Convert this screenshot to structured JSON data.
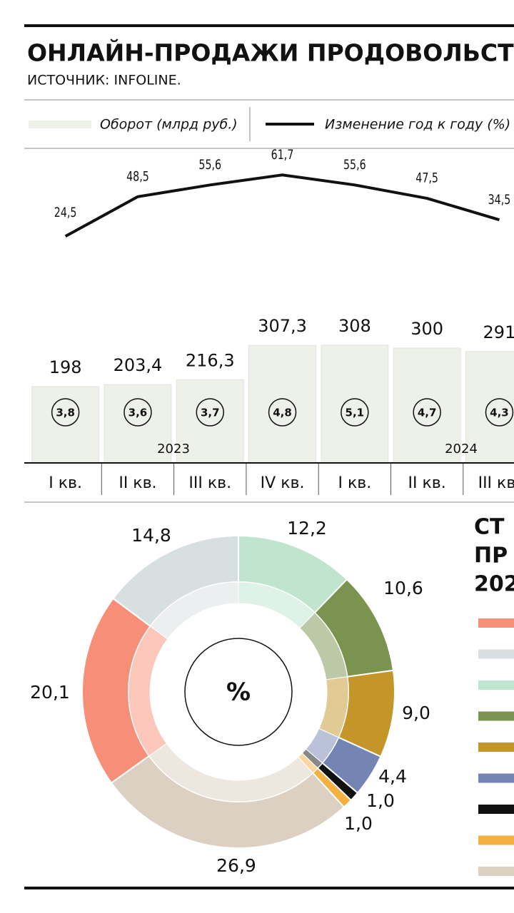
{
  "chart_data": [
    {
      "type": "bar-line",
      "title": "ОНЛАЙН-ПРОДАЖИ ПРОДОВОЛЬСТВЕ",
      "subtitle": "ИСТОЧНИК: INFOLINE.",
      "categories": [
        "I кв.",
        "II кв.",
        "III кв.",
        "IV кв.",
        "I кв.",
        "II кв.",
        "III кв."
      ],
      "years": [
        "2023",
        "2024"
      ],
      "series": [
        {
          "name": "Оборот (млрд руб.)",
          "type": "bar",
          "color": "#eef0ea",
          "values": [
            198,
            203.4,
            216.3,
            307.3,
            308,
            300,
            291
          ],
          "value_labels": [
            "198",
            "203,4",
            "216,3",
            "307,3",
            "308",
            "300",
            "291"
          ],
          "circle_values": [
            3.8,
            3.6,
            3.7,
            4.8,
            5.1,
            4.7,
            4.3
          ],
          "circle_labels": [
            "3,8",
            "3,6",
            "3,7",
            "4,8",
            "5,1",
            "4,7",
            "4,3"
          ]
        },
        {
          "name": "Изменение год к году (%)",
          "type": "line",
          "axis": "y2",
          "color": "#111111",
          "values": [
            24.5,
            48.5,
            55.6,
            61.7,
            55.6,
            47.5,
            34.5
          ],
          "value_labels": [
            "24,5",
            "48,5",
            "55,6",
            "61,7",
            "55,6",
            "47,5",
            "34,5"
          ]
        }
      ],
      "ylim": [
        0,
        400
      ],
      "y2lim": [
        0,
        70
      ]
    },
    {
      "type": "pie",
      "title_lines": [
        "СТ",
        "ПР",
        "202"
      ],
      "center_label": "%",
      "values": [
        12.2,
        10.6,
        9.0,
        4.4,
        1.0,
        1.0,
        26.9,
        20.1,
        14.8
      ],
      "value_labels": [
        "12,2",
        "10,6",
        "9,0",
        "4,4",
        "1,0",
        "1,0",
        "26,9",
        "20,1",
        "14,8"
      ],
      "colors": [
        "#bfe5cf",
        "#7a9450",
        "#c4962a",
        "#7585b3",
        "#111111",
        "#f5b042",
        "#dcd0c2",
        "#f78f78",
        "#d8dfe0"
      ]
    }
  ]
}
